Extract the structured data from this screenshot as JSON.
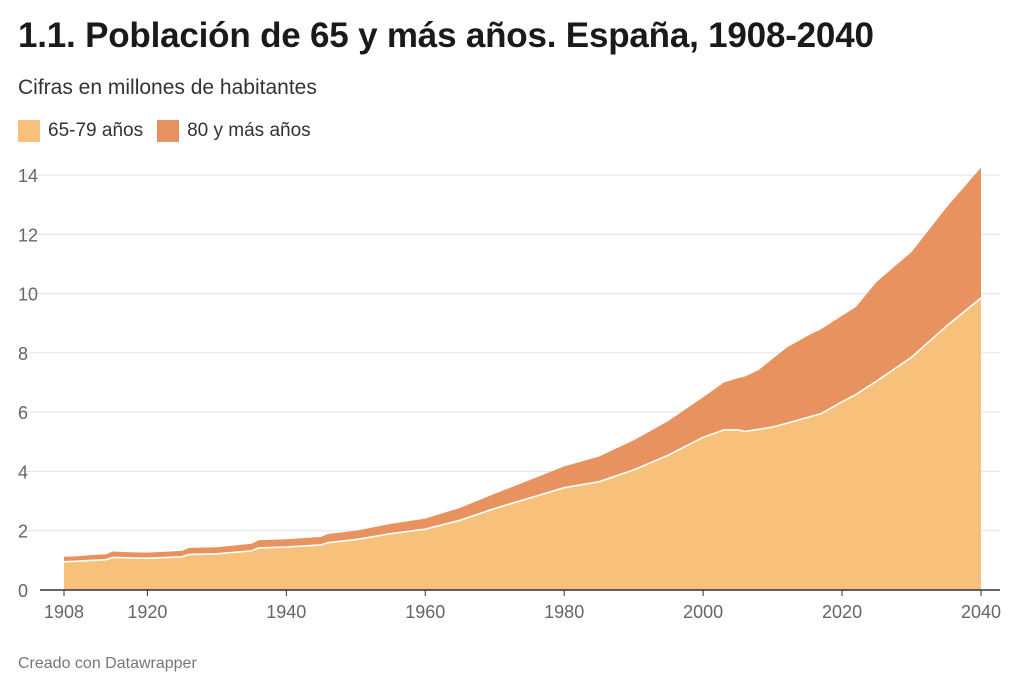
{
  "title": "1.1. Población de 65 y más años. España, 1908-2040",
  "subtitle": "Cifras en millones de habitantes",
  "footer": "Creado con Datawrapper",
  "colors": {
    "series_6579": "#f7c07b",
    "series_80": "#e8925f",
    "grid": "#e3e3e3",
    "axis": "#333333",
    "tick_text": "#666666"
  },
  "chart_data": {
    "type": "area",
    "stacked": true,
    "title": "1.1. Población de 65 y más años. España, 1908-2040",
    "subtitle": "Cifras en millones de habitantes",
    "xlabel": "",
    "ylabel": "",
    "xlim": [
      1908,
      2040
    ],
    "ylim": [
      0,
      14
    ],
    "x_ticks": [
      "1908",
      "1920",
      "1940",
      "1960",
      "1980",
      "2000",
      "2020",
      "2040"
    ],
    "y_ticks": [
      "0",
      "2",
      "4",
      "6",
      "8",
      "10",
      "12",
      "14"
    ],
    "grid": "horizontal",
    "legend_position": "top-left",
    "x": [
      1908,
      1910,
      1912,
      1914,
      1915,
      1918,
      1920,
      1925,
      1926,
      1930,
      1935,
      1936,
      1940,
      1945,
      1946,
      1950,
      1955,
      1960,
      1965,
      1970,
      1975,
      1980,
      1985,
      1990,
      1995,
      2000,
      2003,
      2005,
      2006,
      2008,
      2010,
      2012,
      2015,
      2017,
      2020,
      2022,
      2025,
      2030,
      2035,
      2040
    ],
    "series": [
      {
        "name": "65-79 años",
        "values": [
          0.95,
          0.97,
          1.0,
          1.02,
          1.1,
          1.08,
          1.07,
          1.12,
          1.2,
          1.22,
          1.32,
          1.42,
          1.45,
          1.52,
          1.6,
          1.7,
          1.9,
          2.05,
          2.35,
          2.75,
          3.1,
          3.45,
          3.65,
          4.05,
          4.55,
          5.15,
          5.4,
          5.4,
          5.35,
          5.42,
          5.5,
          5.62,
          5.82,
          5.95,
          6.35,
          6.6,
          7.05,
          7.85,
          8.9,
          9.85
        ]
      },
      {
        "name": "80 y más años",
        "values": [
          0.17,
          0.17,
          0.18,
          0.18,
          0.2,
          0.19,
          0.19,
          0.2,
          0.22,
          0.22,
          0.24,
          0.26,
          0.26,
          0.27,
          0.29,
          0.3,
          0.33,
          0.36,
          0.42,
          0.5,
          0.6,
          0.72,
          0.85,
          1.0,
          1.15,
          1.35,
          1.6,
          1.75,
          1.85,
          2.0,
          2.3,
          2.55,
          2.75,
          2.85,
          2.9,
          2.95,
          3.35,
          3.55,
          4.0,
          4.4
        ]
      }
    ]
  }
}
